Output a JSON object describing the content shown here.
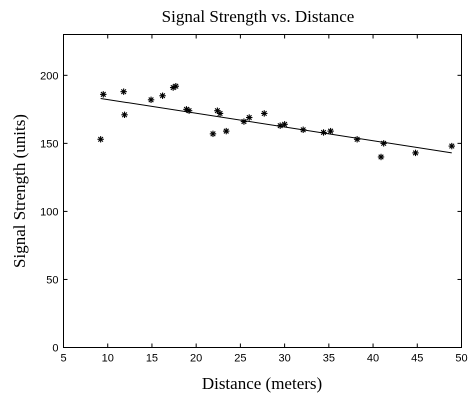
{
  "chart_data": {
    "type": "scatter",
    "title": "Signal Strength vs. Distance",
    "xlabel": "Distance (meters)",
    "ylabel": "Signal Strength (units)",
    "xlim": [
      5,
      50
    ],
    "ylim": [
      0,
      230
    ],
    "xticks": [
      5,
      10,
      15,
      20,
      25,
      30,
      35,
      40,
      45,
      50
    ],
    "yticks": [
      0,
      50,
      100,
      150,
      200
    ],
    "grid": false,
    "legend": "none",
    "marker": "asterisk",
    "color": "#000000",
    "series": [
      {
        "points": [
          {
            "x": 9.2,
            "y": 153
          },
          {
            "x": 9.5,
            "y": 186
          },
          {
            "x": 11.8,
            "y": 188
          },
          {
            "x": 11.9,
            "y": 171
          },
          {
            "x": 14.9,
            "y": 182
          },
          {
            "x": 16.2,
            "y": 185
          },
          {
            "x": 17.4,
            "y": 191
          },
          {
            "x": 17.7,
            "y": 192
          },
          {
            "x": 18.9,
            "y": 175
          },
          {
            "x": 19.2,
            "y": 174
          },
          {
            "x": 21.9,
            "y": 157
          },
          {
            "x": 22.4,
            "y": 174
          },
          {
            "x": 22.7,
            "y": 172
          },
          {
            "x": 23.4,
            "y": 159
          },
          {
            "x": 25.4,
            "y": 166
          },
          {
            "x": 26.0,
            "y": 169
          },
          {
            "x": 27.7,
            "y": 172
          },
          {
            "x": 29.5,
            "y": 163
          },
          {
            "x": 30.0,
            "y": 164
          },
          {
            "x": 32.1,
            "y": 160
          },
          {
            "x": 34.4,
            "y": 158
          },
          {
            "x": 35.2,
            "y": 159
          },
          {
            "x": 38.2,
            "y": 153
          },
          {
            "x": 40.9,
            "y": 140
          },
          {
            "x": 41.2,
            "y": 150
          },
          {
            "x": 44.8,
            "y": 143
          },
          {
            "x": 48.9,
            "y": 148
          }
        ]
      }
    ],
    "fit_line": {
      "type": "linear",
      "x": [
        9.2,
        48.9
      ],
      "y": [
        183,
        143
      ]
    }
  }
}
